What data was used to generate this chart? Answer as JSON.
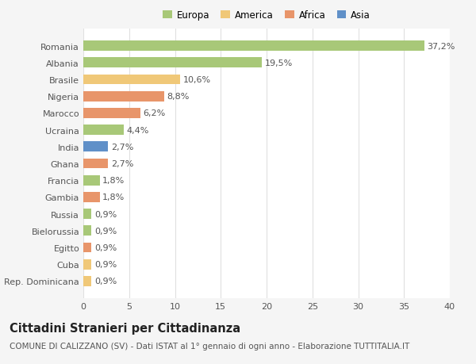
{
  "categories": [
    "Rep. Dominicana",
    "Cuba",
    "Egitto",
    "Bielorussia",
    "Russia",
    "Gambia",
    "Francia",
    "Ghana",
    "India",
    "Ucraina",
    "Marocco",
    "Nigeria",
    "Brasile",
    "Albania",
    "Romania"
  ],
  "values": [
    0.9,
    0.9,
    0.9,
    0.9,
    0.9,
    1.8,
    1.8,
    2.7,
    2.7,
    4.4,
    6.2,
    8.8,
    10.6,
    19.5,
    37.2
  ],
  "colors": [
    "#f0c878",
    "#f0c878",
    "#e8956a",
    "#a8c878",
    "#a8c878",
    "#e8956a",
    "#a8c878",
    "#e8956a",
    "#6090c8",
    "#a8c878",
    "#e8956a",
    "#e8956a",
    "#f0c878",
    "#a8c878",
    "#a8c878"
  ],
  "labels": [
    "0,9%",
    "0,9%",
    "0,9%",
    "0,9%",
    "0,9%",
    "1,8%",
    "1,8%",
    "2,7%",
    "2,7%",
    "4,4%",
    "6,2%",
    "8,8%",
    "10,6%",
    "19,5%",
    "37,2%"
  ],
  "legend_labels": [
    "Europa",
    "America",
    "Africa",
    "Asia"
  ],
  "legend_colors": [
    "#a8c878",
    "#f0c878",
    "#e8956a",
    "#6090c8"
  ],
  "title": "Cittadini Stranieri per Cittadinanza",
  "subtitle": "COMUNE DI CALIZZANO (SV) - Dati ISTAT al 1° gennaio di ogni anno - Elaborazione TUTTITALIA.IT",
  "xlim": [
    0,
    40
  ],
  "xticks": [
    0,
    5,
    10,
    15,
    20,
    25,
    30,
    35,
    40
  ],
  "background_color": "#f5f5f5",
  "plot_bg_color": "#ffffff",
  "grid_color": "#e0e0e0",
  "bar_height": 0.6,
  "title_fontsize": 10.5,
  "subtitle_fontsize": 7.5,
  "tick_fontsize": 8,
  "value_fontsize": 8,
  "legend_fontsize": 8.5
}
